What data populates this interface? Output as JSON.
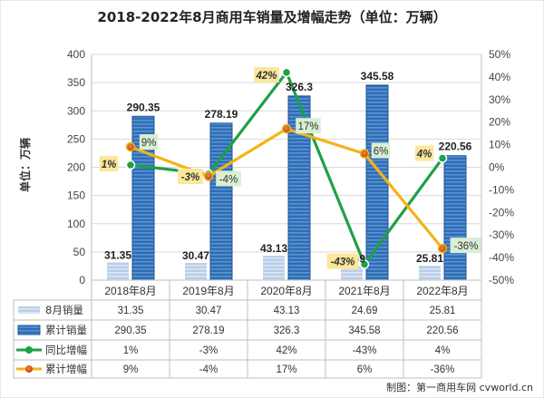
{
  "title": "2018-2022年8月商用车销量及增幅走势（单位：万辆）",
  "ylabel": "单位：万辆",
  "credit": "制图：第一商用车网 cvworld.cn",
  "colors": {
    "monthly_bar": "#c5d6ec",
    "cumulative_bar": "#2e6db4",
    "yoy_line": "#1fa045",
    "cum_growth_line": "#f2b417",
    "yoy_label_bg": "#fce79a",
    "cum_label_bg": "#d9eed3"
  },
  "chart_data": {
    "type": "bar",
    "categories": [
      "2018年8月",
      "2019年8月",
      "2020年8月",
      "2021年8月",
      "2022年8月"
    ],
    "y_left": {
      "min": 0,
      "max": 400,
      "step": 50,
      "ticks": [
        "0",
        "50",
        "100",
        "150",
        "200",
        "250",
        "300",
        "350",
        "400"
      ]
    },
    "y_right": {
      "min": -50,
      "max": 50,
      "step": 10,
      "ticks": [
        "-50%",
        "-40%",
        "-30%",
        "-20%",
        "-10%",
        "0%",
        "10%",
        "20%",
        "30%",
        "40%",
        "50%"
      ]
    },
    "series": [
      {
        "name": "8月销量",
        "kind": "bar",
        "axis": "left",
        "values": [
          31.35,
          30.47,
          43.13,
          24.69,
          25.81
        ],
        "labels": [
          "31.35",
          "30.47",
          "43.13",
          "24.69",
          "25.81"
        ]
      },
      {
        "name": "累计销量",
        "kind": "bar",
        "axis": "left",
        "values": [
          290.35,
          278.19,
          326.3,
          345.58,
          220.56
        ],
        "labels": [
          "290.35",
          "278.19",
          "326.3",
          "345.58",
          "220.56"
        ]
      },
      {
        "name": "同比增幅",
        "kind": "line",
        "axis": "right",
        "values": [
          1,
          -3,
          42,
          -43,
          4
        ],
        "labels": [
          "1%",
          "-3%",
          "42%",
          "-43%",
          "4%"
        ]
      },
      {
        "name": "累计增幅",
        "kind": "line",
        "axis": "right",
        "values": [
          9,
          -4,
          17,
          6,
          -36
        ],
        "labels": [
          "9%",
          "-4%",
          "17%",
          "6%",
          "-36%"
        ]
      }
    ],
    "grid": true,
    "legend": "table-below"
  },
  "table": {
    "rows": [
      {
        "name": "8月销量",
        "cells": [
          "31.35",
          "30.47",
          "43.13",
          "24.69",
          "25.81"
        ]
      },
      {
        "name": "累计销量",
        "cells": [
          "290.35",
          "278.19",
          "326.3",
          "345.58",
          "220.56"
        ]
      },
      {
        "name": "同比增幅",
        "cells": [
          "1%",
          "-3%",
          "42%",
          "-43%",
          "4%"
        ]
      },
      {
        "name": "累计增幅",
        "cells": [
          "9%",
          "-4%",
          "17%",
          "6%",
          "-36%"
        ]
      }
    ]
  }
}
